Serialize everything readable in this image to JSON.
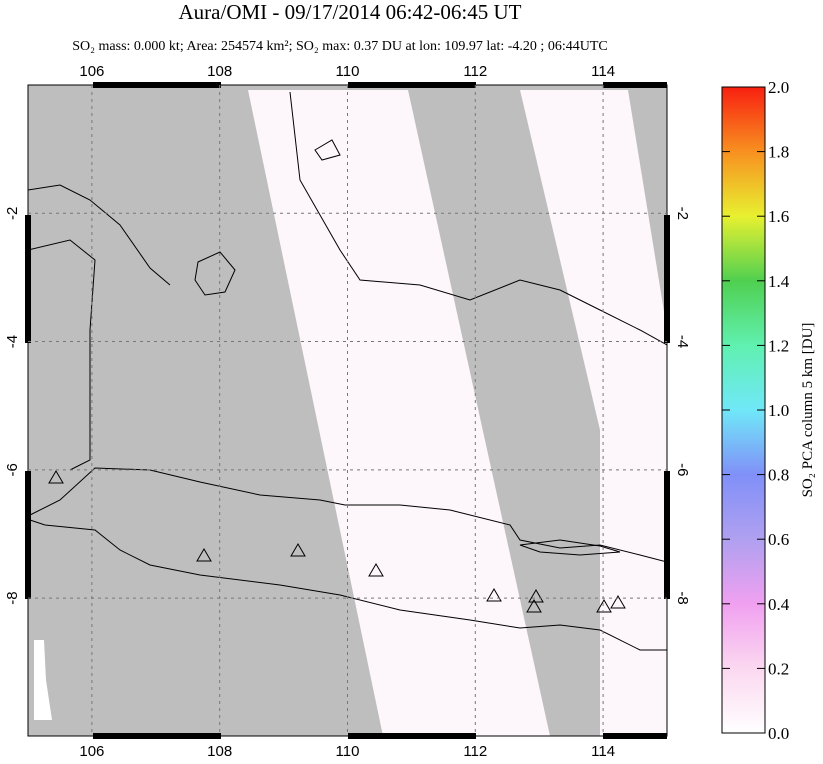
{
  "title": "Aura/OMI - 09/17/2014 06:42-06:45 UT",
  "subtitle": "SO₂ mass: 0.000 kt; Area: 254574 km²; SO₂ max: 0.37 DU at lon: 109.97 lat: -4.20 ; 06:44UTC",
  "map": {
    "xlim": [
      105,
      115
    ],
    "ylim": [
      -10.15,
      0
    ],
    "xticks": [
      106,
      108,
      110,
      112,
      114
    ],
    "yticks": [
      -2,
      -4,
      -6,
      -8
    ]
  },
  "colorbar": {
    "label": "SO₂ PCA column 5 km [DU]",
    "lim": [
      0,
      2
    ],
    "ticks": [
      {
        "value": 0,
        "label": "0.0"
      },
      0.2,
      0.4,
      0.6,
      0.8,
      {
        "value": 1,
        "label": "1.0"
      },
      1.2,
      1.4,
      1.6,
      1.8,
      {
        "value": 2,
        "label": "2.0"
      }
    ]
  }
}
